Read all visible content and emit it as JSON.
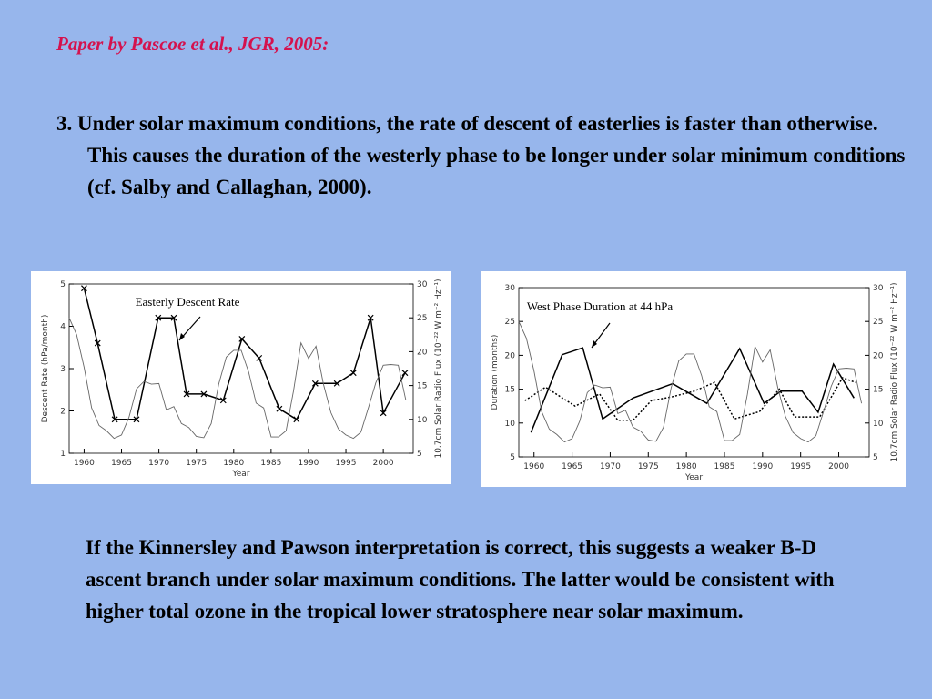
{
  "heading": "Paper by Pascoe et al., JGR, 2005:",
  "point": "3. Under solar maximum conditions, the rate of descent of easterlies is faster than otherwise.  This causes the duration of the westerly phase to be longer under solar minimum conditions (cf. Salby and Callaghan, 2000).",
  "conclusion": "If the Kinnersley and Pawson interpretation is correct, this suggests a weaker B-D ascent branch under solar maximum conditions.  The latter would be consistent with higher total ozone in the tropical lower stratosphere near solar maximum.",
  "chart_data": [
    {
      "type": "line",
      "annotation": "Easterly Descent Rate",
      "xlabel": "Year",
      "ylabel": "Descent Rate (hPa/month)",
      "y2label": "10.7cm Solar Radio Flux (10⁻²² W m⁻² Hz⁻¹)",
      "xlim": [
        1958,
        2004
      ],
      "xticks": [
        1960,
        1965,
        1970,
        1975,
        1980,
        1985,
        1990,
        1995,
        2000
      ],
      "ylim": [
        1,
        5
      ],
      "yticks": [
        1,
        2,
        3,
        4,
        5
      ],
      "y2lim": [
        5,
        30
      ],
      "y2ticks": [
        5,
        10,
        15,
        20,
        25,
        30
      ],
      "series": [
        {
          "color": "#000000",
          "marker": "x",
          "dash": "solid",
          "x": [
            1960,
            1961.8,
            1964.1,
            1967,
            1969.9,
            1972,
            1973.7,
            1976,
            1978.6,
            1981.1,
            1983.4,
            1986.1,
            1988.4,
            1990.9,
            1993.8,
            1996,
            1998.3,
            2000,
            2002.9
          ],
          "values": [
            4.9,
            3.6,
            1.8,
            1.8,
            4.2,
            4.2,
            2.4,
            2.4,
            2.25,
            3.7,
            3.25,
            2.05,
            1.8,
            2.65,
            2.65,
            2.9,
            4.2,
            1.95,
            2.9
          ]
        },
        {
          "color": "#666666",
          "axis": "y2",
          "dash": "solid",
          "x": [
            1958,
            1959,
            1960,
            1961,
            1962,
            1963,
            1964,
            1965,
            1966,
            1967,
            1968,
            1969,
            1970,
            1971,
            1972,
            1973,
            1974,
            1975,
            1976,
            1977,
            1978,
            1979,
            1980,
            1981,
            1982,
            1983,
            1984,
            1985,
            1986,
            1987,
            1988,
            1989,
            1990,
            1991,
            1992,
            1993,
            1994,
            1995,
            1996,
            1997,
            1998,
            1999,
            2000,
            2001,
            2002,
            2003
          ],
          "values": [
            25,
            22.5,
            17.7,
            11.7,
            9.1,
            8.3,
            7.2,
            7.7,
            10.3,
            14.5,
            15.6,
            15.2,
            15.3,
            11.4,
            11.9,
            9.4,
            8.8,
            7.5,
            7.3,
            9.4,
            15.2,
            19.2,
            20.2,
            20.2,
            17,
            12.4,
            11.7,
            7.4,
            7.4,
            8.3,
            14.2,
            21.3,
            19,
            20.8,
            15.2,
            11,
            8.6,
            7.7,
            7.2,
            8.1,
            11.7,
            15.4,
            18,
            18.1,
            18,
            12.9
          ]
        }
      ]
    },
    {
      "type": "line",
      "annotation": "West Phase Duration at 44 hPa",
      "xlabel": "Year",
      "ylabel": "Duration (months)",
      "y2label": "10.7cm Solar Radio Flux (10⁻²² W m⁻² Hz⁻¹)",
      "xlim": [
        1958,
        2004
      ],
      "xticks": [
        1960,
        1965,
        1970,
        1975,
        1980,
        1985,
        1990,
        1995,
        2000
      ],
      "ylim": [
        5,
        30
      ],
      "yticks": [
        5,
        10,
        15,
        20,
        25,
        30
      ],
      "y2lim": [
        5,
        30
      ],
      "y2ticks": [
        5,
        10,
        15,
        20,
        25,
        30
      ],
      "series": [
        {
          "color": "#000000",
          "dash": "solid",
          "x": [
            1959.6,
            1963.7,
            1966.4,
            1969,
            1973,
            1978.2,
            1982.7,
            1987,
            1990.2,
            1992.4,
            1995.2,
            1997.3,
            1999.3,
            2002
          ],
          "values": [
            8.6,
            20.1,
            21.1,
            10.6,
            13.7,
            15.8,
            12.9,
            21,
            12.9,
            14.7,
            14.7,
            11.6,
            18.7,
            13.7
          ]
        },
        {
          "color": "#000000",
          "dash": "dotted",
          "x": [
            1958.8,
            1961.5,
            1965.4,
            1968.6,
            1971,
            1973,
            1975.4,
            1978.2,
            1981,
            1983.7,
            1986.3,
            1989.6,
            1992.2,
            1994.2,
            1997.5,
            2000.5,
            2002.2
          ],
          "values": [
            13.3,
            15.3,
            12.5,
            14.3,
            10.4,
            10.4,
            13.3,
            13.9,
            14.7,
            16,
            10.6,
            11.7,
            15,
            10.9,
            10.9,
            16.7,
            16
          ]
        },
        {
          "color": "#666666",
          "axis": "y2",
          "dash": "solid",
          "x": [
            1958,
            1959,
            1960,
            1961,
            1962,
            1963,
            1964,
            1965,
            1966,
            1967,
            1968,
            1969,
            1970,
            1971,
            1972,
            1973,
            1974,
            1975,
            1976,
            1977,
            1978,
            1979,
            1980,
            1981,
            1982,
            1983,
            1984,
            1985,
            1986,
            1987,
            1988,
            1989,
            1990,
            1991,
            1992,
            1993,
            1994,
            1995,
            1996,
            1997,
            1998,
            1999,
            2000,
            2001,
            2002,
            2003
          ],
          "values": [
            25,
            22.5,
            17.7,
            11.7,
            9.1,
            8.3,
            7.2,
            7.7,
            10.3,
            14.5,
            15.6,
            15.2,
            15.3,
            11.4,
            11.9,
            9.4,
            8.8,
            7.5,
            7.3,
            9.4,
            15.2,
            19.2,
            20.2,
            20.2,
            17,
            12.4,
            11.7,
            7.4,
            7.4,
            8.3,
            14.2,
            21.3,
            19,
            20.8,
            15.2,
            11,
            8.6,
            7.7,
            7.2,
            8.1,
            11.7,
            15.4,
            18,
            18.1,
            18,
            12.9
          ]
        }
      ]
    }
  ]
}
